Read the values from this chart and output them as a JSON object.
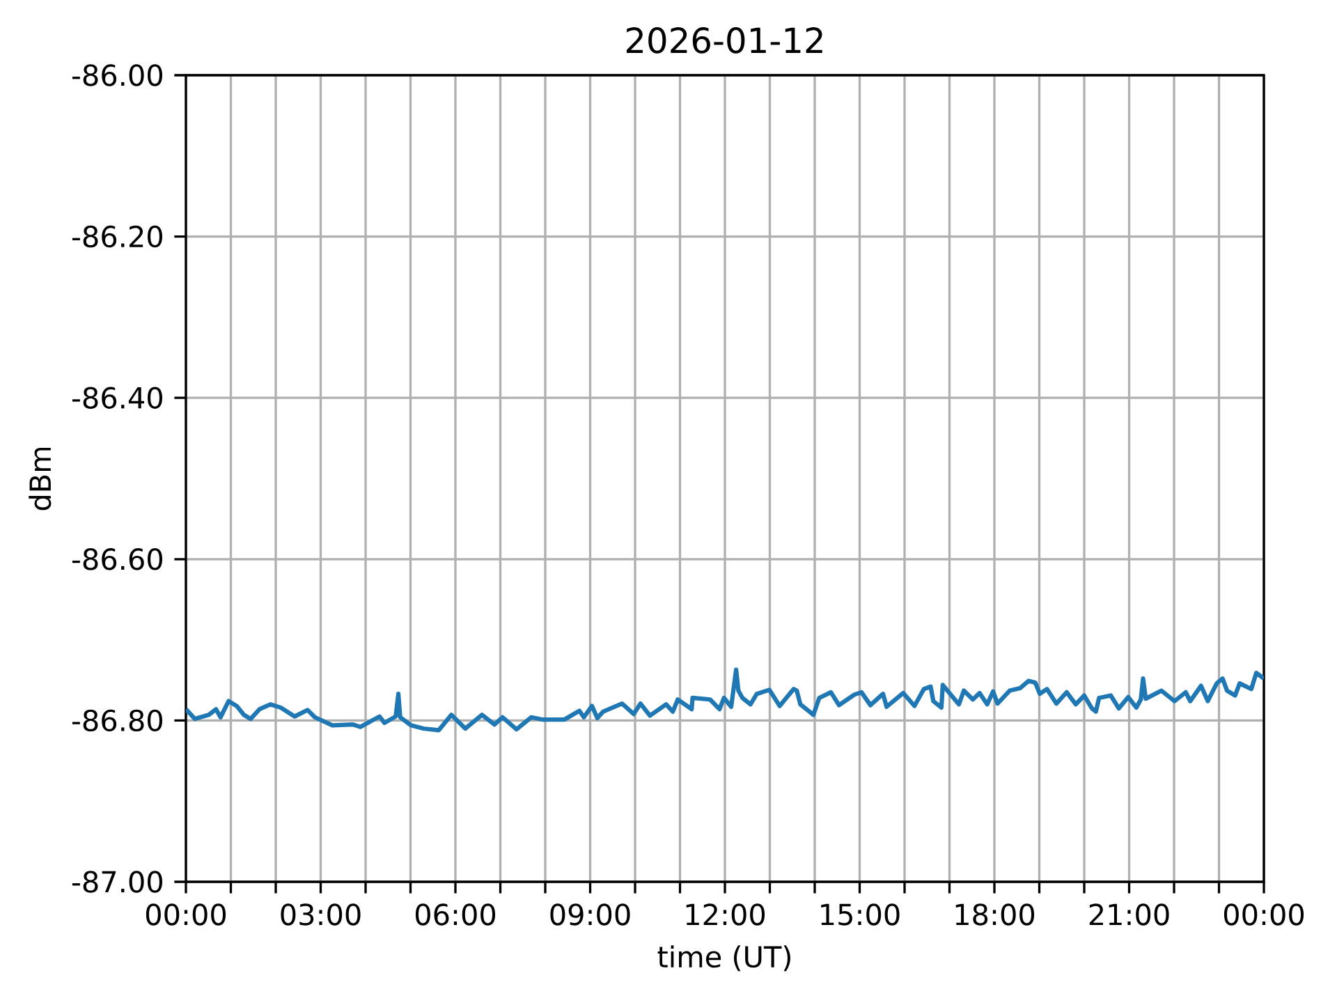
{
  "chart_data": {
    "type": "line",
    "title": "2026-01-12",
    "xlabel": "time (UT)",
    "ylabel": "dBm",
    "xlim": [
      0,
      24
    ],
    "ylim": [
      -87,
      -86
    ],
    "xticks": [
      {
        "value": 0,
        "label": "00:00"
      },
      {
        "value": 1,
        "label": null
      },
      {
        "value": 2,
        "label": null
      },
      {
        "value": 3,
        "label": "03:00"
      },
      {
        "value": 4,
        "label": null
      },
      {
        "value": 5,
        "label": null
      },
      {
        "value": 6,
        "label": "06:00"
      },
      {
        "value": 7,
        "label": null
      },
      {
        "value": 8,
        "label": null
      },
      {
        "value": 9,
        "label": "09:00"
      },
      {
        "value": 10,
        "label": null
      },
      {
        "value": 11,
        "label": null
      },
      {
        "value": 12,
        "label": "12:00"
      },
      {
        "value": 13,
        "label": null
      },
      {
        "value": 14,
        "label": null
      },
      {
        "value": 15,
        "label": "15:00"
      },
      {
        "value": 16,
        "label": null
      },
      {
        "value": 17,
        "label": null
      },
      {
        "value": 18,
        "label": "18:00"
      },
      {
        "value": 19,
        "label": null
      },
      {
        "value": 20,
        "label": null
      },
      {
        "value": 21,
        "label": "21:00"
      },
      {
        "value": 22,
        "label": null
      },
      {
        "value": 23,
        "label": null
      },
      {
        "value": 24,
        "label": "00:00"
      }
    ],
    "yticks": [
      {
        "value": -87,
        "label": "-87.00"
      },
      {
        "value": -86.8,
        "label": "-86.80"
      },
      {
        "value": -86.6,
        "label": "-86.60"
      },
      {
        "value": -86.4,
        "label": "-86.40"
      },
      {
        "value": -86.2,
        "label": "-86.20"
      },
      {
        "value": -86,
        "label": "-86.00"
      }
    ],
    "grid": true,
    "marker": "none",
    "line_style": "solid",
    "series": [
      {
        "color": "#1f77b4",
        "x": [
          0,
          0.2,
          0.51,
          0.67,
          0.77,
          0.95,
          1.13,
          1.29,
          1.44,
          1.64,
          1.88,
          2.11,
          2.42,
          2.71,
          2.87,
          3.26,
          3.72,
          3.88,
          4.31,
          4.42,
          4.67,
          4.73,
          4.77,
          5.01,
          5.29,
          5.63,
          5.91,
          6.22,
          6.59,
          6.87,
          7.05,
          7.36,
          7.69,
          7.95,
          8.42,
          8.76,
          8.86,
          9.04,
          9.16,
          9.29,
          9.71,
          9.97,
          10.12,
          10.33,
          10.69,
          10.84,
          10.95,
          11.26,
          11.28,
          11.67,
          11.88,
          11.98,
          12.14,
          12.25,
          12.3,
          12.39,
          12.57,
          12.71,
          12.99,
          13.22,
          13.53,
          13.6,
          13.68,
          13.97,
          14.1,
          14.36,
          14.54,
          14.88,
          15.04,
          15.24,
          15.52,
          15.6,
          15.97,
          16.22,
          16.43,
          16.58,
          16.64,
          16.82,
          16.85,
          17.21,
          17.32,
          17.52,
          17.67,
          17.84,
          17.97,
          18.07,
          18.34,
          18.57,
          18.76,
          18.91,
          19.01,
          19.17,
          19.38,
          19.61,
          19.81,
          20.0,
          20.17,
          20.26,
          20.33,
          20.59,
          20.77,
          20.98,
          21.16,
          21.26,
          21.31,
          21.37,
          21.72,
          22.01,
          22.26,
          22.36,
          22.6,
          22.75,
          22.95,
          23.08,
          23.18,
          23.36,
          23.46,
          23.72,
          23.83,
          24
        ],
        "values": [
          -86.786,
          -86.798,
          -86.793,
          -86.786,
          -86.796,
          -86.776,
          -86.782,
          -86.793,
          -86.798,
          -86.786,
          -86.78,
          -86.784,
          -86.795,
          -86.787,
          -86.796,
          -86.806,
          -86.805,
          -86.808,
          -86.795,
          -86.803,
          -86.795,
          -86.767,
          -86.796,
          -86.806,
          -86.81,
          -86.812,
          -86.793,
          -86.81,
          -86.793,
          -86.805,
          -86.796,
          -86.811,
          -86.796,
          -86.799,
          -86.799,
          -86.788,
          -86.796,
          -86.782,
          -86.797,
          -86.789,
          -86.779,
          -86.792,
          -86.779,
          -86.794,
          -86.78,
          -86.789,
          -86.774,
          -86.786,
          -86.772,
          -86.774,
          -86.786,
          -86.772,
          -86.783,
          -86.737,
          -86.763,
          -86.772,
          -86.78,
          -86.767,
          -86.762,
          -86.782,
          -86.761,
          -86.763,
          -86.78,
          -86.793,
          -86.772,
          -86.765,
          -86.781,
          -86.768,
          -86.765,
          -86.781,
          -86.767,
          -86.783,
          -86.766,
          -86.782,
          -86.761,
          -86.758,
          -86.776,
          -86.784,
          -86.756,
          -86.78,
          -86.763,
          -86.774,
          -86.766,
          -86.78,
          -86.764,
          -86.779,
          -86.763,
          -86.76,
          -86.751,
          -86.753,
          -86.767,
          -86.761,
          -86.779,
          -86.765,
          -86.78,
          -86.769,
          -86.785,
          -86.789,
          -86.772,
          -86.769,
          -86.785,
          -86.771,
          -86.784,
          -86.774,
          -86.748,
          -86.773,
          -86.763,
          -86.776,
          -86.765,
          -86.776,
          -86.757,
          -86.776,
          -86.754,
          -86.748,
          -86.763,
          -86.769,
          -86.754,
          -86.761,
          -86.741,
          -86.748
        ]
      }
    ]
  }
}
